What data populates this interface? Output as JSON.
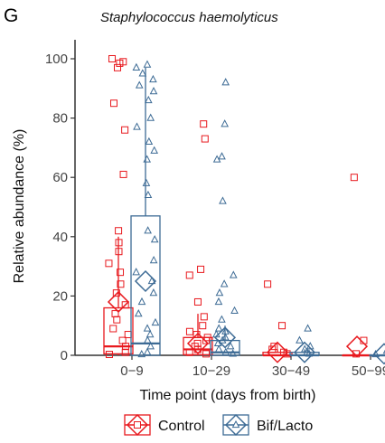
{
  "panel_label": "G",
  "chart_data": {
    "type": "boxplot",
    "title": "Staphylococcus haemolyticus",
    "xlabel": "Time point (days from birth)",
    "ylabel": "Relative abundance (%)",
    "categories": [
      "0−9",
      "10−29",
      "30−49",
      "50−99"
    ],
    "ylim": [
      0,
      105
    ],
    "yticks": [
      0,
      20,
      40,
      60,
      80,
      100
    ],
    "grid": false,
    "legend_position": "bottom",
    "series": [
      {
        "name": "Control",
        "color": "#e8191e",
        "marker": "square",
        "boxes": [
          {
            "min": 0,
            "q1": 0.5,
            "median": 3,
            "q3": 16,
            "max": 40,
            "mean": 18
          },
          {
            "min": 0,
            "q1": 0.2,
            "median": 2,
            "q3": 6,
            "max": 14,
            "mean": 4
          },
          {
            "min": 0,
            "q1": 0,
            "median": 0,
            "q3": 1,
            "max": 2,
            "mean": 1
          },
          {
            "min": 0,
            "q1": 0,
            "median": 0,
            "q3": 0,
            "max": 0,
            "mean": 3
          }
        ],
        "points": [
          [
            0,
            100
          ],
          [
            0,
            99
          ],
          [
            0,
            98.5
          ],
          [
            0,
            97
          ],
          [
            0,
            85
          ],
          [
            0,
            76
          ],
          [
            0,
            61
          ],
          [
            0,
            42
          ],
          [
            0,
            38
          ],
          [
            0,
            35
          ],
          [
            0,
            31
          ],
          [
            0,
            28
          ],
          [
            0,
            24
          ],
          [
            0,
            21
          ],
          [
            0,
            17
          ],
          [
            0,
            14
          ],
          [
            0,
            12
          ],
          [
            0,
            9
          ],
          [
            0,
            7
          ],
          [
            0,
            5
          ],
          [
            0,
            3
          ],
          [
            0,
            1
          ],
          [
            0,
            0.3
          ],
          [
            1,
            78
          ],
          [
            1,
            73
          ],
          [
            1,
            29
          ],
          [
            1,
            27
          ],
          [
            1,
            18
          ],
          [
            1,
            13
          ],
          [
            1,
            10
          ],
          [
            1,
            8
          ],
          [
            1,
            7
          ],
          [
            1,
            6
          ],
          [
            1,
            5
          ],
          [
            1,
            4
          ],
          [
            1,
            3
          ],
          [
            1,
            2
          ],
          [
            1,
            1
          ],
          [
            1,
            0.5
          ],
          [
            2,
            24
          ],
          [
            2,
            10
          ],
          [
            2,
            3
          ],
          [
            2,
            2
          ],
          [
            2,
            1
          ],
          [
            2,
            0.5
          ],
          [
            3,
            60
          ],
          [
            3,
            5
          ],
          [
            3,
            0.5
          ]
        ]
      },
      {
        "name": "Bif/Lacto",
        "color": "#3d6b95",
        "marker": "triangle",
        "boxes": [
          {
            "min": 0,
            "q1": 0,
            "median": 4,
            "q3": 47,
            "max": 97,
            "mean": 25
          },
          {
            "min": 0,
            "q1": 0,
            "median": 1,
            "q3": 5,
            "max": 10,
            "mean": 6
          },
          {
            "min": 0,
            "q1": 0,
            "median": 0,
            "q3": 1,
            "max": 2,
            "mean": 1
          },
          {
            "min": 0,
            "q1": 0,
            "median": 0,
            "q3": 0,
            "max": 0,
            "mean": 0.5
          }
        ],
        "points": [
          [
            0,
            98
          ],
          [
            0,
            97
          ],
          [
            0,
            95
          ],
          [
            0,
            93
          ],
          [
            0,
            91
          ],
          [
            0,
            89
          ],
          [
            0,
            86
          ],
          [
            0,
            80
          ],
          [
            0,
            77
          ],
          [
            0,
            72
          ],
          [
            0,
            69
          ],
          [
            0,
            66
          ],
          [
            0,
            58
          ],
          [
            0,
            54
          ],
          [
            0,
            42
          ],
          [
            0,
            39
          ],
          [
            0,
            32
          ],
          [
            0,
            28
          ],
          [
            0,
            25
          ],
          [
            0,
            21
          ],
          [
            0,
            18
          ],
          [
            0,
            14
          ],
          [
            0,
            11
          ],
          [
            0,
            9
          ],
          [
            0,
            7
          ],
          [
            0,
            5
          ],
          [
            0,
            3
          ],
          [
            0,
            1
          ],
          [
            0,
            0.3
          ],
          [
            1,
            92
          ],
          [
            1,
            78
          ],
          [
            1,
            67
          ],
          [
            1,
            66
          ],
          [
            1,
            52
          ],
          [
            1,
            27
          ],
          [
            1,
            24
          ],
          [
            1,
            21
          ],
          [
            1,
            18
          ],
          [
            1,
            15
          ],
          [
            1,
            12
          ],
          [
            1,
            9
          ],
          [
            1,
            8
          ],
          [
            1,
            7
          ],
          [
            1,
            6
          ],
          [
            1,
            5
          ],
          [
            1,
            4
          ],
          [
            1,
            3
          ],
          [
            1,
            2
          ],
          [
            1,
            1
          ],
          [
            1,
            0.5
          ],
          [
            2,
            9
          ],
          [
            2,
            5
          ],
          [
            2,
            3
          ],
          [
            2,
            2
          ],
          [
            2,
            1
          ],
          [
            2,
            0.5
          ],
          [
            3,
            1.5
          ],
          [
            3,
            0.8
          ],
          [
            3,
            0.3
          ]
        ]
      }
    ]
  }
}
